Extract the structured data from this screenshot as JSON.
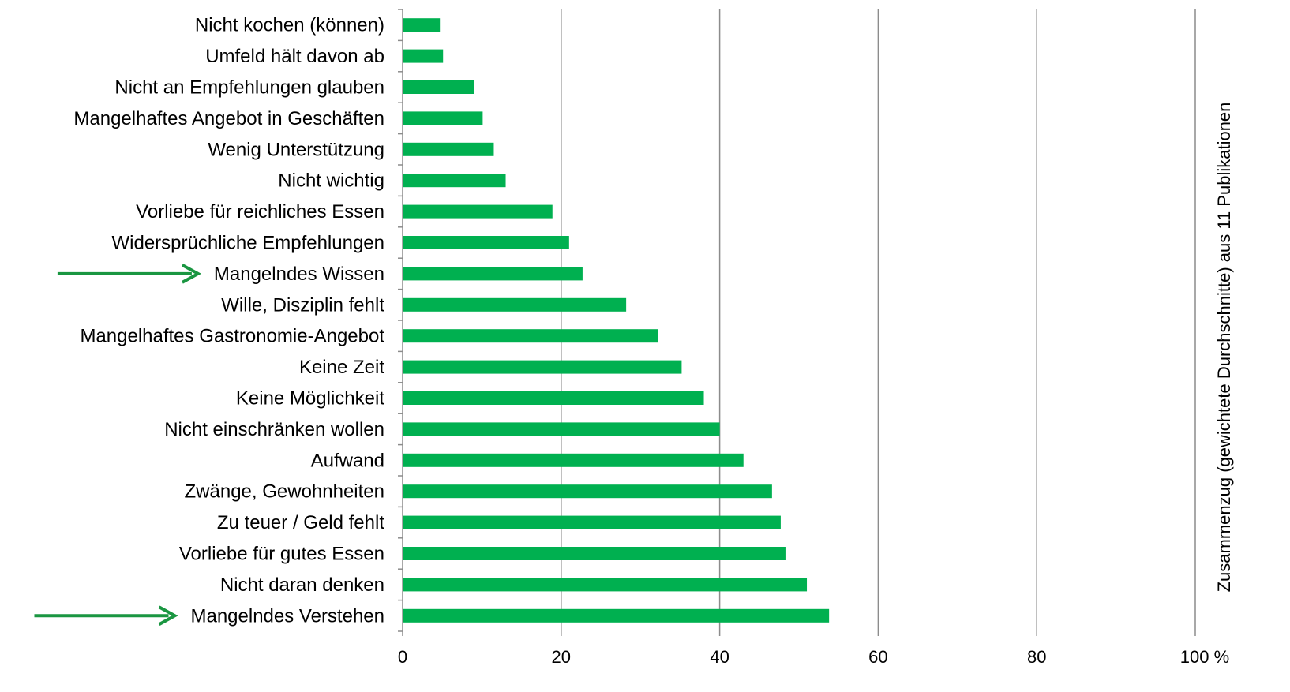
{
  "chart_data": {
    "type": "bar",
    "orientation": "horizontal",
    "categories": [
      "Nicht kochen (können)",
      "Umfeld hält davon ab",
      "Nicht an Empfehlungen glauben",
      "Mangelhaftes Angebot in Geschäften",
      "Wenig Unterstützung",
      "Nicht wichtig",
      "Vorliebe für reichliches Essen",
      "Widersprüchliche Empfehlungen",
      "Mangelndes Wissen",
      "Wille, Disziplin fehlt",
      "Mangelhaftes Gastronomie-Angebot",
      "Keine Zeit",
      "Keine Möglichkeit",
      "Nicht einschränken wollen",
      "Aufwand",
      "Zwänge, Gewohnheiten",
      "Zu teuer / Geld fehlt",
      "Vorliebe für gutes Essen",
      "Nicht daran denken",
      "Mangelndes Verstehen"
    ],
    "values": [
      4.7,
      5.1,
      9.0,
      10.1,
      11.5,
      13.0,
      18.9,
      21.0,
      22.7,
      28.2,
      32.2,
      35.2,
      38.0,
      40.0,
      43.0,
      46.6,
      47.7,
      48.3,
      51.0,
      53.8
    ],
    "xlim": [
      0,
      100
    ],
    "xticks": [
      "0",
      "20",
      "40",
      "60",
      "80",
      "100 %"
    ],
    "ylabel_right": "Zusammenzug (gewichtete Durchschnitte) aus 11 Publikationen",
    "highlighted_categories": [
      "Mangelndes Wissen",
      "Mangelndes Verstehen"
    ],
    "grid": true,
    "bar_color": "#00b050",
    "arrow_color": "#1a9641",
    "grid_color": "#8c8c8c"
  }
}
